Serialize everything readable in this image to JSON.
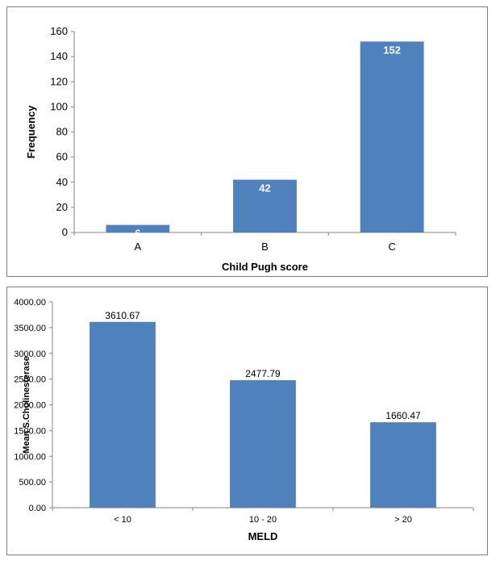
{
  "chart_data": [
    {
      "type": "bar",
      "categories": [
        "A",
        "B",
        "C"
      ],
      "values": [
        6,
        42,
        152
      ],
      "data_labels": [
        "6",
        "42",
        "152"
      ],
      "xlabel": "Child Pugh score",
      "ylabel": "Frequency",
      "ylim": [
        0,
        160
      ],
      "yticks": [
        "0",
        "20",
        "40",
        "60",
        "80",
        "100",
        "120",
        "140",
        "160"
      ],
      "grid": false,
      "bar_color": "#4f81bd",
      "label_color": "#ffffff"
    },
    {
      "type": "bar",
      "categories": [
        "< 10",
        "10 - 20",
        "> 20"
      ],
      "values": [
        3610.67,
        2477.79,
        1660.47
      ],
      "data_labels": [
        "3610.67",
        "2477.79",
        "1660.47"
      ],
      "xlabel": "MELD",
      "ylabel": "Mean S.Cholinesterase",
      "ylim": [
        0,
        4000
      ],
      "yticks": [
        "0.00",
        "500.00",
        "1000.00",
        "1500.00",
        "2000.00",
        "2500.00",
        "3000.00",
        "3500.00",
        "4000.00"
      ],
      "grid": false,
      "bar_color": "#4f81bd",
      "label_color": "#000000"
    }
  ]
}
